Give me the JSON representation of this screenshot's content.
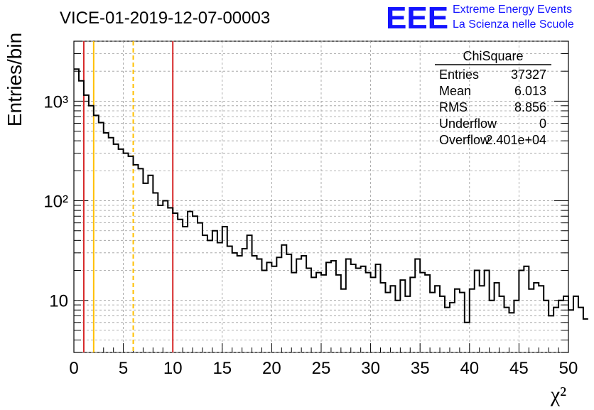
{
  "header": {
    "title": "VICE-01-2019-12-07-00003",
    "logo_letters": "EEE",
    "logo_line1": "Extreme Energy Events",
    "logo_line2": "La Scienza nelle Scuole",
    "logo_color": "#1414ff"
  },
  "stats": {
    "name": "ChiSquare",
    "rows": [
      {
        "label": "Entries",
        "value": "37327"
      },
      {
        "label": "Mean",
        "value": "6.013"
      },
      {
        "label": "RMS",
        "value": "8.856"
      },
      {
        "label": "Underflow",
        "value": "0"
      },
      {
        "label": "Overflow",
        "value": "2.401e+04"
      }
    ]
  },
  "chart_data": {
    "type": "histogram",
    "title": "VICE-01-2019-12-07-00003",
    "xlabel": "χ²",
    "ylabel": "Entries/bin",
    "xlim": [
      0,
      50
    ],
    "ylim": [
      3,
      4000
    ],
    "yscale": "log",
    "grid": true,
    "x_ticks": [
      0,
      5,
      10,
      15,
      20,
      25,
      30,
      35,
      40,
      45,
      50
    ],
    "y_ticks": [
      {
        "value": 10,
        "label": "10"
      },
      {
        "value": 100,
        "label": "10²"
      },
      {
        "value": 1000,
        "label": "10³"
      }
    ],
    "bin_width": 0.5,
    "values": [
      2100,
      1600,
      1150,
      900,
      720,
      610,
      480,
      430,
      370,
      330,
      300,
      280,
      230,
      210,
      150,
      180,
      120,
      90,
      100,
      85,
      75,
      65,
      55,
      78,
      70,
      60,
      45,
      40,
      50,
      38,
      55,
      35,
      30,
      28,
      33,
      45,
      28,
      26,
      20,
      24,
      22,
      27,
      36,
      29,
      19,
      26,
      28,
      21,
      17,
      19,
      18,
      24,
      25,
      18,
      13,
      26,
      23,
      21,
      22,
      19,
      17,
      23,
      15,
      12,
      14,
      10,
      16,
      11,
      17,
      26,
      19,
      18,
      12,
      14,
      11,
      8.5,
      9.5,
      13,
      12,
      6.0,
      13,
      20,
      14,
      20,
      10,
      15,
      11,
      8.5,
      7.5,
      10,
      20,
      22,
      13,
      15,
      14,
      10,
      7.0,
      8.5,
      10,
      11,
      8.0,
      11,
      8.5,
      6.5
    ],
    "vertical_lines": [
      {
        "x": 1,
        "color": "#d62728",
        "style": "solid"
      },
      {
        "x": 2,
        "color": "#ffc000",
        "style": "solid"
      },
      {
        "x": 6,
        "color": "#ffc000",
        "style": "dashed"
      },
      {
        "x": 10,
        "color": "#d62728",
        "style": "solid"
      }
    ]
  }
}
